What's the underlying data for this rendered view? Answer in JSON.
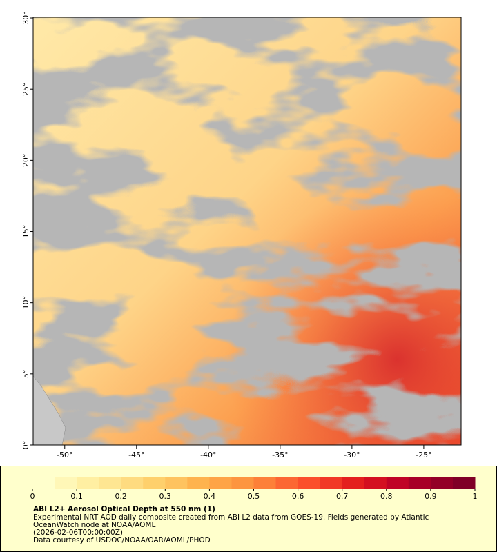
{
  "map": {
    "xlim": [
      -52.2,
      -22.4
    ],
    "ylim": [
      0,
      30.05
    ],
    "xticks": [
      {
        "value": -50,
        "label": "-50°"
      },
      {
        "value": -45,
        "label": "-45°"
      },
      {
        "value": -40,
        "label": "-40°"
      },
      {
        "value": -35,
        "label": "-35°"
      },
      {
        "value": -30,
        "label": "-30°"
      },
      {
        "value": -25,
        "label": "-25°"
      }
    ],
    "yticks": [
      {
        "value": 0,
        "label": "0°"
      },
      {
        "value": 5,
        "label": "5°"
      },
      {
        "value": 10,
        "label": "10°"
      },
      {
        "value": 15,
        "label": "15°"
      },
      {
        "value": 20,
        "label": "20°"
      },
      {
        "value": 25,
        "label": "25°"
      },
      {
        "value": 30,
        "label": "30°"
      }
    ]
  },
  "colorbar": {
    "lim": [
      0,
      1
    ],
    "ticks": [
      0,
      0.1,
      0.2,
      0.3,
      0.4,
      0.5,
      0.6,
      0.7,
      0.8,
      0.9,
      1
    ],
    "colors": [
      "#ffffcc",
      "#fff7b7",
      "#ffefa2",
      "#fee692",
      "#fedb80",
      "#fed06c",
      "#fec35f",
      "#feb34e",
      "#fea446",
      "#fd953f",
      "#fd8038",
      "#fc6732",
      "#fb4f2b",
      "#f13825",
      "#e4201e",
      "#d41020",
      "#c00325",
      "#a80026",
      "#930026",
      "#800026"
    ]
  },
  "caption": {
    "title": "ABI L2+ Aerosol Optical Depth at 550 nm (1)",
    "lines": [
      "Experimental NRT AOD daily composite created from ABI L2 data from GOES-19. Fields generated by Atlantic",
      "OceanWatch node at NOAA/AOML",
      "(2026-02-06T00:00:00Z)",
      "Data courtesy of USDOC/NOAA/OAR/AOML/PHOD"
    ]
  }
}
